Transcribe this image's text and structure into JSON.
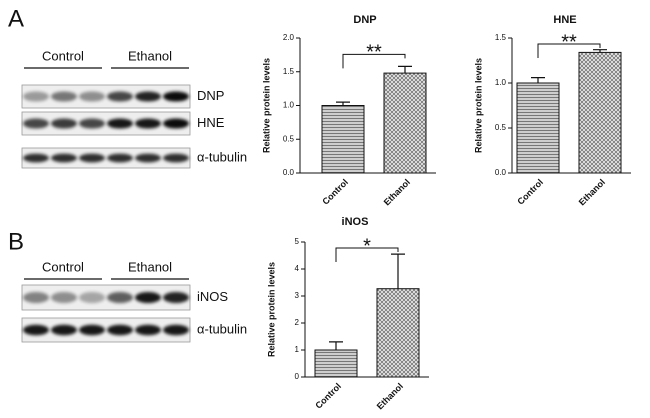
{
  "chart_data": [
    {
      "type": "bar",
      "title": "DNP",
      "y_label": "Relative protein levels",
      "categories": [
        "Control",
        "Ethanol"
      ],
      "values": [
        1.0,
        1.48
      ],
      "errors": [
        0.05,
        0.1
      ],
      "color": "#777777",
      "ylim": [
        0,
        2
      ],
      "yticks": [
        {
          "value": 0,
          "label": "0.0"
        },
        {
          "value": 0.5,
          "label": "0.5"
        },
        {
          "value": 1,
          "label": "1.0"
        },
        {
          "value": 1.5,
          "label": "1.5"
        },
        {
          "value": 2,
          "label": "2.0"
        }
      ],
      "annotation": "**"
    },
    {
      "type": "bar",
      "title": "HNE",
      "y_label": "Relative protein levels",
      "categories": [
        "Control",
        "Ethanol"
      ],
      "values": [
        1.0,
        1.34
      ],
      "errors": [
        0.06,
        0.03
      ],
      "color": "#777777",
      "ylim": [
        0,
        1.5
      ],
      "yticks": [
        {
          "value": 0,
          "label": "0.0"
        },
        {
          "value": 0.5,
          "label": "0.5"
        },
        {
          "value": 1,
          "label": "1.0"
        },
        {
          "value": 1.5,
          "label": "1.5"
        }
      ],
      "annotation": "**"
    },
    {
      "type": "bar",
      "title": "iNOS",
      "y_label": "Relative protein levels",
      "categories": [
        "Control",
        "Ethanol"
      ],
      "values": [
        1.0,
        3.27
      ],
      "errors": [
        0.3,
        1.28
      ],
      "color": "#777777",
      "ylim": [
        0,
        5
      ],
      "yticks": [
        0,
        1,
        2,
        3,
        4,
        5
      ],
      "annotation": "*"
    }
  ],
  "panels": [
    {
      "label": "A",
      "groups": [
        "Control",
        "Ethanol"
      ],
      "rows": [
        "DNP",
        "HNE",
        "α-tubulin"
      ]
    },
    {
      "label": "B",
      "groups": [
        "Control",
        "Ethanol"
      ],
      "rows": [
        "iNOS",
        "α-tubulin"
      ]
    }
  ]
}
